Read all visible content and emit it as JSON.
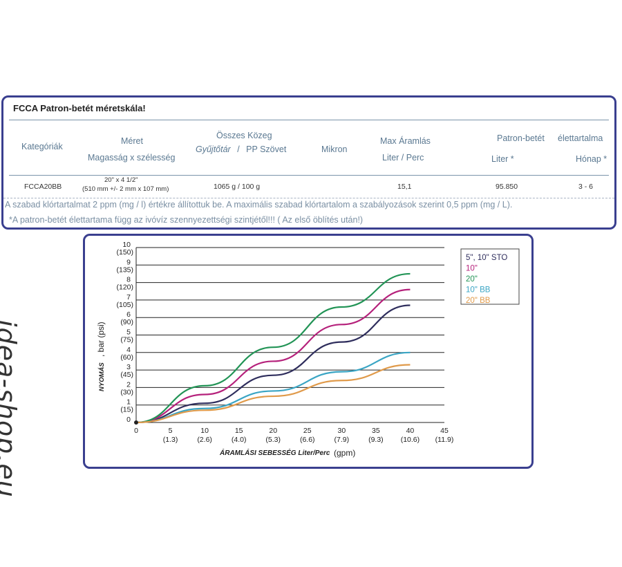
{
  "spec_table": {
    "title": "FCCA Patron-betét méretskála!",
    "headers": {
      "kategoriak": "Kategóriák",
      "meret": "Méret",
      "meret_sub": "Magasság x szélesség",
      "osszes_kozeg": "Összes Közeg",
      "gyujtotar": "Gyűjtőtár",
      "slash": "/",
      "pp_szovet": "PP Szövet",
      "mikron": "Mikron",
      "max_aramlas": "Max Áramlás",
      "liter_perc": "Liter / Perc",
      "patron_betet": "Patron-betét",
      "elettartalma": "élettartalma",
      "liter_star": "Liter *",
      "honap_star": "Hónap *"
    },
    "row": {
      "kategoria": "FCCA20BB",
      "meret_line1": "20\" x 4 1/2\"",
      "meret_line2": "(510 mm +/- 2 mm x 107 mm)",
      "osszes_kozeg": "1065 g / 100 g",
      "mikron": "",
      "max_aramlas": "15,1",
      "liter": "95.850",
      "honap": "3 - 6"
    },
    "note1": "A szabad klórtartalmat 2 ppm (mg / l) értékre állítottuk be.  A maximális szabad klórtartalom a szabályozások szerint 0,5 ppm (mg / L).",
    "note2": "*A patron-betét élettartama függ az ivóvíz szennyezettségi szintjétől!!! ( Az első öblítés után!)"
  },
  "chart_data": {
    "type": "line",
    "title": "",
    "xlabel": "ÁRAMLÁSI SEBESSÉG Liter/Perc",
    "xlabel_unit": "(gpm)",
    "ylabel": "NYOMÁS",
    "ylabel_unit": ", bar (psi)",
    "xlim": [
      0,
      45
    ],
    "ylim": [
      0,
      10
    ],
    "x_ticks": [
      0,
      5,
      10,
      15,
      20,
      25,
      30,
      35,
      40,
      45
    ],
    "x_tick_sublabels": [
      "",
      "(1.3)",
      "(2.6)",
      "(4.0)",
      "(5.3)",
      "(6.6)",
      "(7.9)",
      "(9.3)",
      "(10.6)",
      "(11.9)"
    ],
    "y_ticks": [
      0,
      1,
      2,
      3,
      4,
      5,
      6,
      7,
      8,
      9,
      10
    ],
    "y_tick_sublabels": [
      "",
      "(15)",
      "(30)",
      "(45)",
      "(60)",
      "(75)",
      "(90)",
      "(105)",
      "(120)",
      "(135)",
      "(150)"
    ],
    "grid": "horizontal",
    "legend_position": "top-right",
    "series": [
      {
        "name": "5\", 10\" STO",
        "color": "#2e2d5c",
        "x": [
          0,
          10,
          20,
          30,
          40
        ],
        "y": [
          0,
          1.1,
          2.7,
          4.6,
          6.7
        ]
      },
      {
        "name": "10\"",
        "color": "#b5217b",
        "x": [
          0,
          10,
          20,
          30,
          40
        ],
        "y": [
          0,
          1.6,
          3.5,
          5.6,
          7.6
        ]
      },
      {
        "name": "20\"",
        "color": "#229456",
        "x": [
          0,
          10,
          20,
          30,
          40
        ],
        "y": [
          0,
          2.1,
          4.3,
          6.6,
          8.5
        ]
      },
      {
        "name": "10\" BB",
        "color": "#3aa5c4",
        "x": [
          0,
          10,
          20,
          30,
          40
        ],
        "y": [
          0,
          0.8,
          1.8,
          2.9,
          4.0
        ]
      },
      {
        "name": "20\" BB",
        "color": "#e09a4a",
        "x": [
          0,
          10,
          20,
          30,
          40
        ],
        "y": [
          0,
          0.7,
          1.5,
          2.4,
          3.3
        ]
      }
    ]
  },
  "watermark": "idea-shop.eu"
}
